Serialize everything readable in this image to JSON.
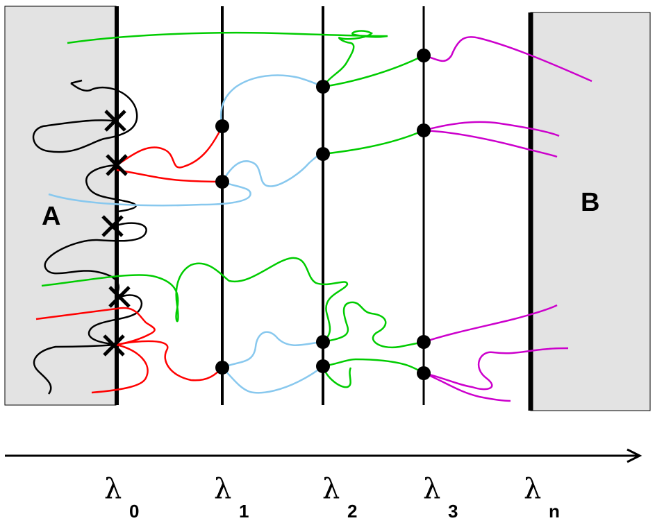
{
  "regions": {
    "a": "A",
    "b": "B"
  },
  "interfaces": [
    {
      "symbol": "λ",
      "subscript": "0"
    },
    {
      "symbol": "λ",
      "subscript": "1"
    },
    {
      "symbol": "λ",
      "subscript": "2"
    },
    {
      "symbol": "λ",
      "subscript": "3"
    },
    {
      "symbol": "λ",
      "subscript": "n"
    }
  ],
  "colors": {
    "region_fill": "#e3e3e3",
    "ensemble_0": "#000000",
    "ensemble_1": "#ff0000",
    "ensemble_2": "#88c8ee",
    "ensemble_3": "#00cc00",
    "ensemble_4": "#cc00cc"
  },
  "icons": {
    "crossing_marker": "x-mark-icon",
    "shooting_point": "dot-icon",
    "axis_arrow": "arrow-right-icon"
  }
}
